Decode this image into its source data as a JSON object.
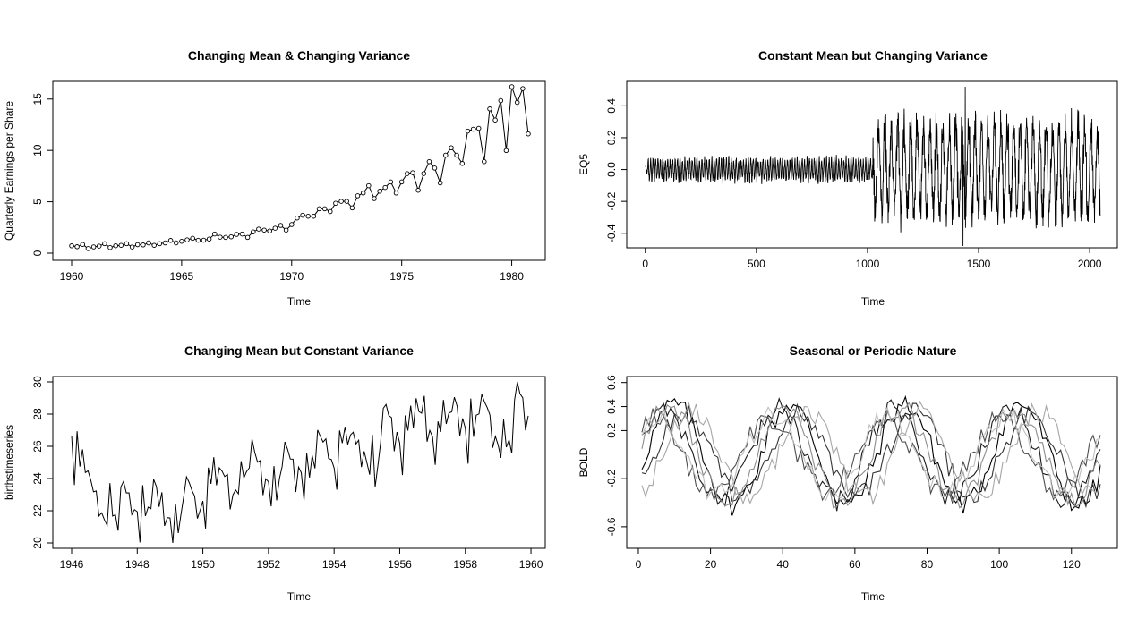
{
  "chart_data": [
    {
      "type": "line",
      "title": "Changing Mean & Changing Variance",
      "xlabel": "Time",
      "ylabel": "Quarterly Earnings per Share",
      "xlim": [
        1960,
        1980.75
      ],
      "ylim": [
        0,
        16.2
      ],
      "xticks": [
        1960,
        1965,
        1970,
        1975,
        1980
      ],
      "yticks": [
        0,
        5,
        10,
        15
      ],
      "grid": false,
      "markers": "open-circle",
      "series": [
        {
          "x_start": 1960,
          "x_step": 0.25,
          "values": [
            0.71,
            0.63,
            0.85,
            0.44,
            0.61,
            0.69,
            0.92,
            0.55,
            0.72,
            0.77,
            0.92,
            0.6,
            0.83,
            0.8,
            1.0,
            0.77,
            0.92,
            1.0,
            1.24,
            1.0,
            1.16,
            1.3,
            1.45,
            1.25,
            1.26,
            1.38,
            1.86,
            1.56,
            1.53,
            1.59,
            1.83,
            1.86,
            1.53,
            2.07,
            2.34,
            2.25,
            2.16,
            2.43,
            2.7,
            2.25,
            2.79,
            3.42,
            3.69,
            3.6,
            3.6,
            4.32,
            4.32,
            4.05,
            4.86,
            5.04,
            5.04,
            4.41,
            5.58,
            5.85,
            6.57,
            5.31,
            6.03,
            6.39,
            6.93,
            5.85,
            6.93,
            7.74,
            7.83,
            6.12,
            7.74,
            8.91,
            8.28,
            6.84,
            9.54,
            10.26,
            9.54,
            8.73,
            11.88,
            12.06,
            12.15,
            8.91,
            14.04,
            12.96,
            14.85,
            9.99,
            16.2,
            14.67,
            16.02,
            11.61
          ]
        }
      ]
    },
    {
      "type": "line",
      "title": "Constant Mean but Changing Variance",
      "xlabel": "Time",
      "ylabel": "EQ5",
      "xlim": [
        1,
        2048
      ],
      "ylim": [
        -0.48,
        0.52
      ],
      "xticks": [
        0,
        500,
        1000,
        1500,
        2000
      ],
      "yticks": [
        -0.4,
        -0.2,
        0.0,
        0.2,
        0.4
      ],
      "ytick_labels": [
        "-0.4",
        "-0.2",
        "0.0",
        "0.2",
        "0.4"
      ],
      "grid": false,
      "series": [
        {
          "segments": [
            {
              "x_from": 1,
              "x_to": 1024,
              "period": 11,
              "amplitude": 0.07,
              "level": 0.0
            },
            {
              "x_from": 1025,
              "x_to": 2048,
              "period": 29,
              "amplitude": 0.3,
              "level": 0.0
            }
          ],
          "extremes": {
            "max": 0.52,
            "min": -0.48,
            "x_at_max": 1440,
            "x_at_min": 1430
          }
        }
      ]
    },
    {
      "type": "line",
      "title": "Changing Mean but Constant Variance",
      "xlabel": "Time",
      "ylabel": "birthstimeseries",
      "xlim": [
        1946,
        1959.917
      ],
      "ylim": [
        20,
        30
      ],
      "xticks": [
        1946,
        1948,
        1950,
        1952,
        1954,
        1956,
        1958,
        1960
      ],
      "yticks": [
        20,
        22,
        24,
        26,
        28,
        30
      ],
      "grid": false,
      "series": [
        {
          "x_start": 1946,
          "x_step": 0.08333,
          "values": [
            26.663,
            23.598,
            26.931,
            24.74,
            25.806,
            24.364,
            24.477,
            23.901,
            23.175,
            23.227,
            21.672,
            21.87,
            21.439,
            21.089,
            23.709,
            21.669,
            21.752,
            20.761,
            23.479,
            23.824,
            23.105,
            23.11,
            21.759,
            22.073,
            21.937,
            20.035,
            23.59,
            21.672,
            22.222,
            22.123,
            23.95,
            23.504,
            22.238,
            23.142,
            21.059,
            21.573,
            21.548,
            20.0,
            22.424,
            20.615,
            21.761,
            22.874,
            24.104,
            23.748,
            23.262,
            22.907,
            21.519,
            22.025,
            22.604,
            20.894,
            24.677,
            23.673,
            25.32,
            23.583,
            24.671,
            24.454,
            24.122,
            24.252,
            22.084,
            22.991,
            23.287,
            23.049,
            25.076,
            24.037,
            24.43,
            24.667,
            26.451,
            25.618,
            25.014,
            25.11,
            22.964,
            23.981,
            23.798,
            22.27,
            24.775,
            22.646,
            23.988,
            24.737,
            26.276,
            25.816,
            25.21,
            25.199,
            23.162,
            24.707,
            24.364,
            22.644,
            25.565,
            24.062,
            25.431,
            24.635,
            27.009,
            26.606,
            26.268,
            26.462,
            25.246,
            25.18,
            24.657,
            23.304,
            26.982,
            26.199,
            27.21,
            26.122,
            26.706,
            26.878,
            26.152,
            26.379,
            24.712,
            25.688,
            24.99,
            24.239,
            26.721,
            23.475,
            24.767,
            26.219,
            28.361,
            28.599,
            27.914,
            27.784,
            25.693,
            26.881,
            26.217,
            24.218,
            27.914,
            26.975,
            28.527,
            27.139,
            28.982,
            28.169,
            28.056,
            29.136,
            26.291,
            26.987,
            26.589,
            24.848,
            27.543,
            26.896,
            28.878,
            27.39,
            28.065,
            28.141,
            29.048,
            28.484,
            26.634,
            27.735,
            27.132,
            24.924,
            28.963,
            26.589,
            27.931,
            28.009,
            29.229,
            28.759,
            28.405,
            27.945,
            25.912,
            26.619,
            26.076,
            25.286,
            27.66,
            25.951,
            26.398,
            25.565,
            28.865,
            30.0,
            29.261,
            29.012,
            26.992,
            27.897
          ]
        }
      ]
    },
    {
      "type": "line",
      "title": "Seasonal or Periodic Nature",
      "xlabel": "Time",
      "ylabel": "BOLD",
      "xlim": [
        1,
        128
      ],
      "ylim": [
        -0.72,
        0.62
      ],
      "xticks": [
        0,
        20,
        40,
        60,
        80,
        100,
        120
      ],
      "yticks": [
        -0.6,
        -0.2,
        0.2,
        0.4,
        0.6
      ],
      "ytick_labels": [
        "-0.6",
        "-0.2",
        "0.2",
        "0.4",
        "0.6"
      ],
      "grid": false,
      "series": [
        {
          "color": "#000000",
          "period": 32,
          "phase": 0.0,
          "amplitude": 0.42
        },
        {
          "color": "#1a1a1a",
          "period": 32,
          "phase": 0.6,
          "amplitude": 0.38
        },
        {
          "color": "#333333",
          "period": 32,
          "phase": -0.5,
          "amplitude": 0.35
        },
        {
          "color": "#4d4d4d",
          "period": 32,
          "phase": 1.1,
          "amplitude": 0.3
        },
        {
          "color": "#8c8c8c",
          "period": 32,
          "phase": 0.3,
          "amplitude": 0.4
        },
        {
          "color": "#a6a6a6",
          "period": 32,
          "phase": -0.9,
          "amplitude": 0.36
        },
        {
          "color": "#bfbfbf",
          "period": 32,
          "phase": 0.9,
          "amplitude": 0.33
        }
      ]
    }
  ]
}
